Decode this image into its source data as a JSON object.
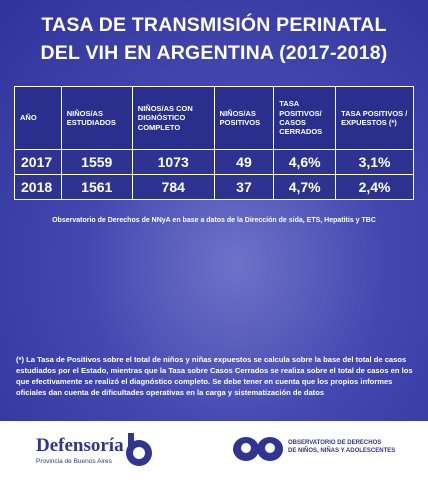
{
  "title": [
    "TASA DE TRANSMISIÓN PERINATAL",
    "DEL VIH EN ARGENTINA (2017-2018)"
  ],
  "table": {
    "header": [
      "AÑO",
      "NIÑOS/AS ESTUDIADOS",
      "NIÑOS/AS CON DIGNÓSTICO COMPLETO",
      "NIÑOS/AS POSITIVOS",
      "TASA POSITIVOS/ CASOS CERRADOS",
      "TASA POSITIVOS / EXPUESTOS (*)"
    ],
    "rows": [
      [
        "2017",
        "1559",
        "1073",
        "49",
        "4,6%",
        "3,1%"
      ],
      [
        "2018",
        "1561",
        "784",
        "37",
        "4,7%",
        "2,4%"
      ]
    ]
  },
  "source": "Observatorio de Derechos de NNyA en base a datos de la Dirección de sida, ETS, Hepatitis y TBC",
  "footnote": "(*) La Tasa de Positivos sobre el total de niños y niñas expuestos se calcula sobre la base del total de casos estudiados por el Estado, mientras que la Tasa sobre Casos Cerrados se realiza sobre el total de casos en los que efectivamente se realizó el diagnóstico completo. Se debe tener en cuenta que los propios informes oficiales dan cuenta de dificultades operativas en la carga y sistematización de datos",
  "footer": {
    "left_logo": "Defensoría",
    "left_sub": "Provincia de Buenos Aires",
    "right": [
      "OBSERVATORIO DE DERECHOS",
      "DE NIÑOS, NIÑAS Y ADOLESCENTES"
    ]
  }
}
